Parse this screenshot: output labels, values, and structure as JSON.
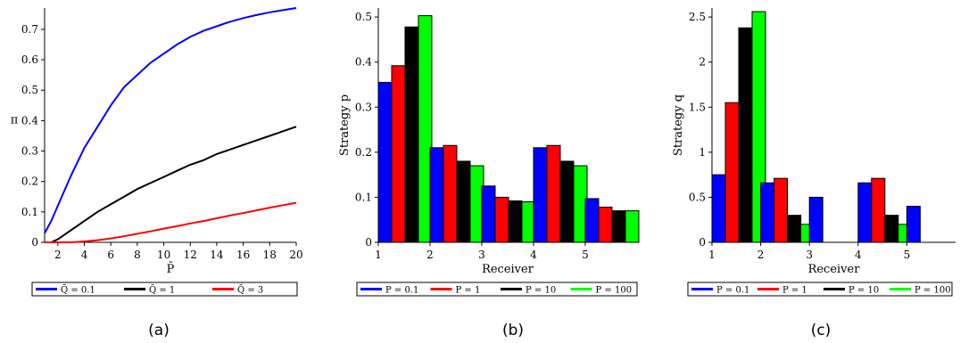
{
  "chart_data": [
    {
      "type": "line",
      "caption": "(a)",
      "xlabel": "P̄",
      "ylabel": "π",
      "xlim": [
        1,
        20
      ],
      "ylim": [
        0,
        0.77
      ],
      "xticks": [
        2,
        4,
        6,
        8,
        10,
        12,
        14,
        16,
        18,
        20
      ],
      "yticks": [
        0,
        0.1,
        0.2,
        0.3,
        0.4,
        0.5,
        0.6,
        0.7
      ],
      "x": [
        1,
        1.5,
        2,
        3,
        4,
        5,
        6,
        7,
        8,
        9,
        10,
        11,
        12,
        13,
        14,
        15,
        16,
        17,
        18,
        19,
        20
      ],
      "series": [
        {
          "name": "Q̄ = 0.1",
          "color": "#0000ff",
          "values": [
            0.03,
            0.07,
            0.12,
            0.22,
            0.31,
            0.38,
            0.45,
            0.51,
            0.55,
            0.59,
            0.62,
            0.65,
            0.675,
            0.695,
            0.71,
            0.725,
            0.737,
            0.747,
            0.756,
            0.763,
            0.77
          ]
        },
        {
          "name": "Q̄ = 1",
          "color": "#000000",
          "values": [
            0,
            0,
            0.01,
            0.04,
            0.07,
            0.1,
            0.125,
            0.15,
            0.175,
            0.195,
            0.215,
            0.235,
            0.255,
            0.27,
            0.29,
            0.305,
            0.32,
            0.335,
            0.35,
            0.365,
            0.38
          ]
        },
        {
          "name": "Q̄ = 3",
          "color": "#ff0000",
          "values": [
            0,
            0,
            0,
            0,
            0.003,
            0.007,
            0.013,
            0.02,
            0.028,
            0.036,
            0.045,
            0.053,
            0.062,
            0.07,
            0.079,
            0.088,
            0.096,
            0.105,
            0.114,
            0.122,
            0.13
          ]
        }
      ]
    },
    {
      "type": "bar",
      "caption": "(b)",
      "xlabel": "Receiver",
      "ylabel": "Strategy p",
      "xlim": [
        1,
        6
      ],
      "ylim": [
        0,
        0.52
      ],
      "xticks": [
        1,
        2,
        3,
        4,
        5
      ],
      "yticks": [
        0,
        0.1,
        0.2,
        0.3,
        0.4,
        0.5
      ],
      "categories": [
        "1",
        "2",
        "3",
        "4",
        "5"
      ],
      "series": [
        {
          "name": "P = 0.1",
          "color": "#0000ff",
          "values": [
            0.355,
            0.21,
            0.125,
            0.21,
            0.097
          ]
        },
        {
          "name": "P = 1",
          "color": "#ff0000",
          "values": [
            0.392,
            0.215,
            0.1,
            0.215,
            0.078
          ]
        },
        {
          "name": "P = 10",
          "color": "#000000",
          "values": [
            0.478,
            0.18,
            0.092,
            0.18,
            0.07
          ]
        },
        {
          "name": "P = 100",
          "color": "#00ff00",
          "values": [
            0.503,
            0.17,
            0.09,
            0.17,
            0.07
          ]
        }
      ]
    },
    {
      "type": "bar",
      "caption": "(c)",
      "xlabel": "Receiver",
      "ylabel": "Strategy q",
      "xlim": [
        1,
        6
      ],
      "ylim": [
        0,
        2.6
      ],
      "xticks": [
        1,
        2,
        3,
        4,
        5
      ],
      "yticks": [
        0,
        0.5,
        1,
        1.5,
        2,
        2.5
      ],
      "yticklabels": [
        "0",
        "0.5",
        "1",
        "1.5",
        "2",
        "2.5"
      ],
      "categories": [
        "1",
        "2",
        "3",
        "4",
        "5"
      ],
      "series": [
        {
          "name": "P = 0.1",
          "color": "#0000ff",
          "values": [
            0.75,
            0.66,
            0.5,
            0.66,
            0.4
          ]
        },
        {
          "name": "P = 1",
          "color": "#ff0000",
          "values": [
            1.55,
            0.71,
            0,
            0.71,
            0
          ]
        },
        {
          "name": "P = 10",
          "color": "#000000",
          "values": [
            2.38,
            0.3,
            0,
            0.3,
            0
          ]
        },
        {
          "name": "P = 100",
          "color": "#00ff00",
          "values": [
            2.56,
            0.2,
            0,
            0.2,
            0
          ]
        }
      ]
    }
  ]
}
